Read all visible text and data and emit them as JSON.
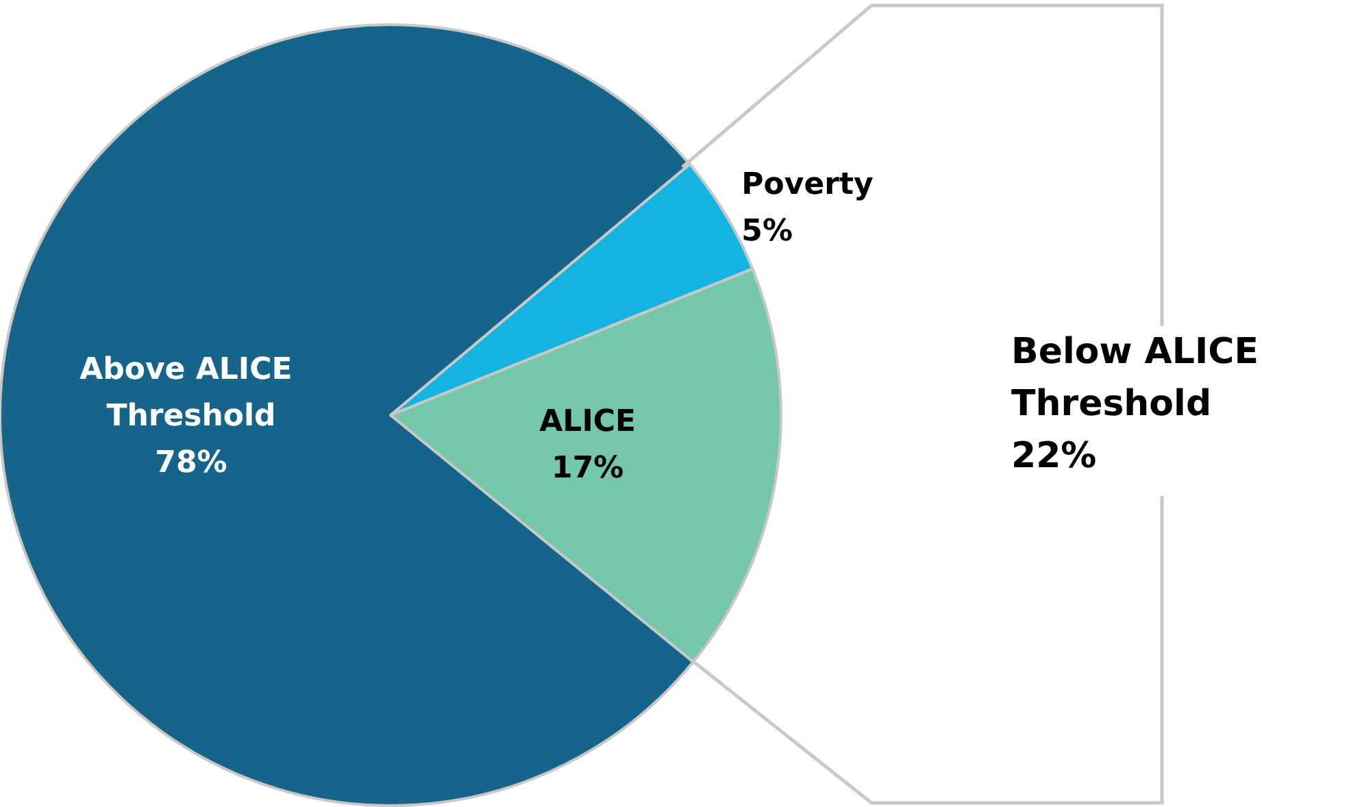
{
  "chart_data": {
    "type": "pie",
    "categories": [
      "Poverty",
      "ALICE",
      "Above ALICE Threshold"
    ],
    "values": [
      5,
      17,
      78
    ],
    "colors": [
      "#13b5e0",
      "#74c7a8",
      "#17648a"
    ],
    "value_labels": [
      "5%",
      "17%",
      "78%"
    ],
    "legend": false,
    "annotations": [
      "Below ALICE Threshold\n22%"
    ]
  }
}
